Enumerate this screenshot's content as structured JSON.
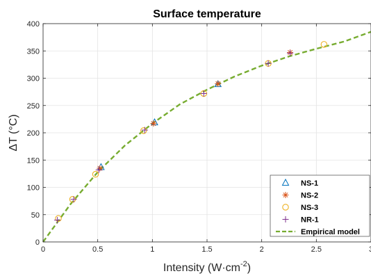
{
  "chart_data": {
    "type": "scatter",
    "title": "Surface temperature",
    "xlabel": {
      "main": "Intensity (W·cm",
      "sup": "-2",
      "end": ")"
    },
    "ylabel": "ΔT (°C)",
    "xlim": [
      0,
      3
    ],
    "ylim": [
      0,
      400
    ],
    "xticks": [
      0,
      0.5,
      1,
      1.5,
      2,
      2.5,
      3
    ],
    "xtick_labels": [
      "0",
      "0.5",
      "1",
      "1.5",
      "2",
      "2.5",
      "3"
    ],
    "yticks": [
      0,
      50,
      100,
      150,
      200,
      250,
      300,
      350,
      400
    ],
    "ytick_labels": [
      "0",
      "50",
      "100",
      "150",
      "200",
      "250",
      "300",
      "350",
      "400"
    ],
    "grid": true,
    "legend_position": "bottom-right",
    "series": [
      {
        "name": "NS-1",
        "marker": "triangle",
        "color": "#0072BD",
        "points": [
          [
            0.53,
            137
          ],
          [
            1.02,
            219
          ],
          [
            1.6,
            289
          ]
        ]
      },
      {
        "name": "NS-2",
        "marker": "asterisk",
        "color": "#D95319",
        "points": [
          [
            0.52,
            135
          ],
          [
            1.01,
            217
          ],
          [
            1.6,
            290
          ],
          [
            2.26,
            347
          ]
        ]
      },
      {
        "name": "NS-3",
        "marker": "circle",
        "color": "#EDB120",
        "points": [
          [
            0.14,
            43
          ],
          [
            0.27,
            78
          ],
          [
            0.48,
            124
          ],
          [
            0.92,
            204
          ],
          [
            1.47,
            272
          ],
          [
            2.06,
            327
          ],
          [
            2.57,
            362
          ]
        ]
      },
      {
        "name": "NR-1",
        "marker": "plus",
        "color": "#7E2F8E",
        "points": [
          [
            0.13,
            40
          ],
          [
            0.28,
            78
          ],
          [
            0.51,
            132
          ],
          [
            0.93,
            205
          ],
          [
            1.47,
            272
          ],
          [
            2.06,
            327
          ],
          [
            2.26,
            346
          ]
        ]
      },
      {
        "name": "Empirical model",
        "marker": "dashed-line",
        "color": "#77AC30",
        "points": [
          [
            0,
            0
          ],
          [
            0.25,
            69
          ],
          [
            0.5,
            128
          ],
          [
            0.75,
            177
          ],
          [
            1,
            217
          ],
          [
            1.25,
            252
          ],
          [
            1.5,
            279
          ],
          [
            1.75,
            303
          ],
          [
            2,
            323
          ],
          [
            2.25,
            340
          ],
          [
            2.5,
            354
          ],
          [
            2.75,
            367
          ],
          [
            3,
            385
          ]
        ]
      }
    ]
  }
}
